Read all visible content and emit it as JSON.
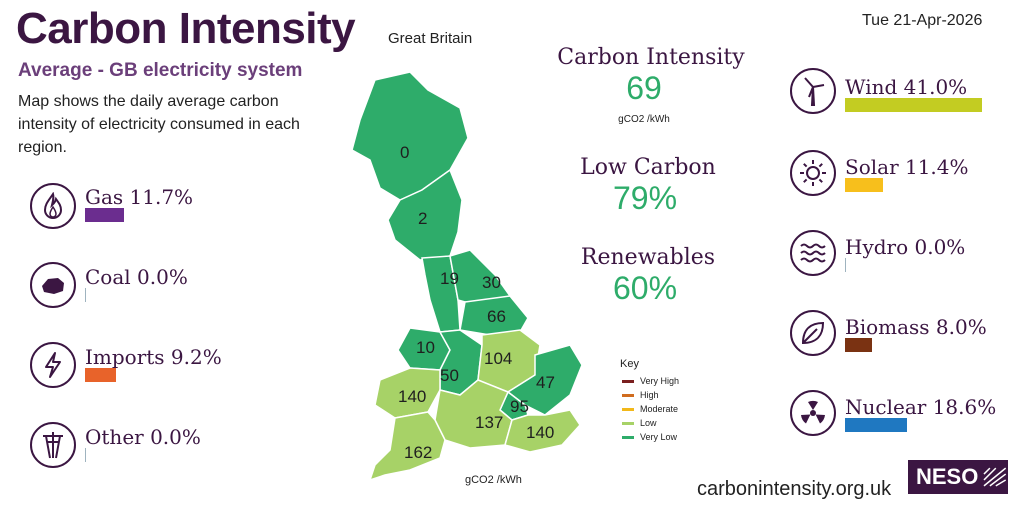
{
  "header": {
    "title": "Carbon Intensity",
    "region": "Great Britain",
    "date": "Tue 21-Apr-2026",
    "subtitle": "Average - GB electricity system",
    "description": "Map shows the daily average carbon intensity of electricity consumed in each region."
  },
  "left_sources": [
    {
      "label": "Gas 11.7%",
      "percent": 11.7,
      "color": "#6b2d8f",
      "icon": "flame-icon"
    },
    {
      "label": "Coal 0.0%",
      "percent": 0.0,
      "color": "#333333",
      "icon": "coal-icon"
    },
    {
      "label": "Imports 9.2%",
      "percent": 9.2,
      "color": "#e8632a",
      "icon": "lightning-icon"
    },
    {
      "label": "Other 0.0%",
      "percent": 0.0,
      "color": "#888888",
      "icon": "pylon-icon"
    }
  ],
  "right_sources": [
    {
      "label": "Wind 41.0%",
      "percent": 41.0,
      "color": "#c3cc22",
      "icon": "wind-turbine-icon"
    },
    {
      "label": "Solar 11.4%",
      "percent": 11.4,
      "color": "#f7bf1c",
      "icon": "sun-icon"
    },
    {
      "label": "Hydro 0.0%",
      "percent": 0.0,
      "color": "#4aa3d8",
      "icon": "water-waves-icon"
    },
    {
      "label": "Biomass 8.0%",
      "percent": 8.0,
      "color": "#7a3212",
      "icon": "leaf-icon"
    },
    {
      "label": "Nuclear 18.6%",
      "percent": 18.6,
      "color": "#1f78c1",
      "icon": "radiation-icon"
    }
  ],
  "stats": {
    "ci_label": "Carbon Intensity",
    "ci_value": "69",
    "ci_unit": "gCO2 /kWh",
    "low_carbon_label": "Low Carbon",
    "low_carbon_value": "79%",
    "renewables_label": "Renewables",
    "renewables_value": "60%"
  },
  "map": {
    "unit": "gCO2 /kWh",
    "regions": [
      {
        "name": "North Scotland",
        "value": "0",
        "color": "#2eac6a"
      },
      {
        "name": "South Scotland",
        "value": "2",
        "color": "#2eac6a"
      },
      {
        "name": "North West England",
        "value": "19",
        "color": "#2eac6a"
      },
      {
        "name": "North East England",
        "value": "30",
        "color": "#2eac6a"
      },
      {
        "name": "Yorkshire",
        "value": "66",
        "color": "#2eac6a"
      },
      {
        "name": "North Wales",
        "value": "10",
        "color": "#2eac6a"
      },
      {
        "name": "West Midlands",
        "value": "50",
        "color": "#2eac6a"
      },
      {
        "name": "East Midlands",
        "value": "104",
        "color": "#a7d267"
      },
      {
        "name": "East England",
        "value": "47",
        "color": "#2eac6a"
      },
      {
        "name": "South Wales",
        "value": "140",
        "color": "#a7d267"
      },
      {
        "name": "London",
        "value": "95",
        "color": "#2eac6a"
      },
      {
        "name": "South England",
        "value": "137",
        "color": "#a7d267"
      },
      {
        "name": "South East England",
        "value": "140",
        "color": "#a7d267"
      },
      {
        "name": "South West England",
        "value": "162",
        "color": "#a7d267"
      }
    ]
  },
  "key": {
    "title": "Key",
    "items": [
      {
        "label": "Very High",
        "color": "#7a1f1f"
      },
      {
        "label": "High",
        "color": "#d06c1f"
      },
      {
        "label": "Moderate",
        "color": "#f2b81a"
      },
      {
        "label": "Low",
        "color": "#a7d267"
      },
      {
        "label": "Very Low",
        "color": "#2eac6a"
      }
    ]
  },
  "footer": {
    "url": "carbonintensity.org.uk",
    "logo": "NESO"
  }
}
